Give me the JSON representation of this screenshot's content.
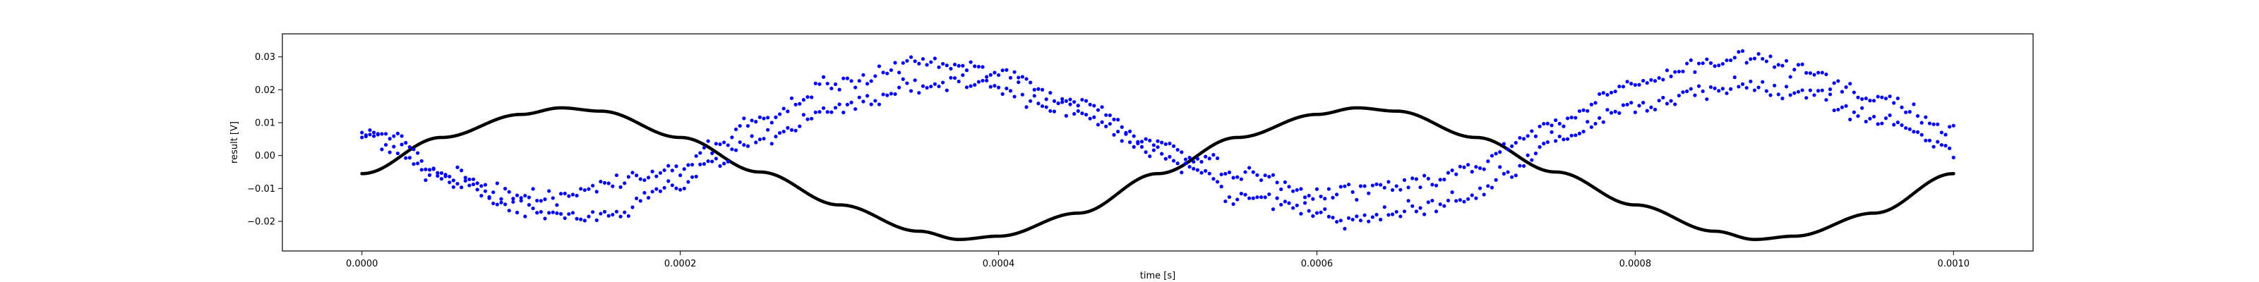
{
  "chart_data": {
    "type": "scatter",
    "title": "",
    "xlabel": "time [s]",
    "ylabel": "result [V]",
    "xlim": [
      -5e-05,
      0.00105
    ],
    "ylim": [
      -0.029,
      0.037
    ],
    "xticks": [
      0.0,
      0.0002,
      0.0004,
      0.0006,
      0.0008,
      0.001
    ],
    "xtick_labels": [
      "0.0000",
      "0.0002",
      "0.0004",
      "0.0006",
      "0.0008",
      "0.0010"
    ],
    "yticks": [
      -0.02,
      -0.01,
      0.0,
      0.01,
      0.02,
      0.03
    ],
    "ytick_labels": [
      "−0.02",
      "−0.01",
      "0.00",
      "0.01",
      "0.02",
      "0.03"
    ],
    "grid": false,
    "legend": "none",
    "series": [
      {
        "color": "#000000",
        "marker_size": 2.4,
        "x": [
          0.0,
          5e-05,
          0.0001,
          0.000125,
          0.00015,
          0.0002,
          0.00025,
          0.0003,
          0.00035,
          0.000375,
          0.0004,
          0.00045,
          0.0005,
          0.00055,
          0.0006,
          0.000625,
          0.00065,
          0.0007,
          0.00075,
          0.0008,
          0.00085,
          0.000875,
          0.0009,
          0.00095,
          0.001
        ],
        "y": [
          -0.0055,
          0.0055,
          0.0125,
          0.0145,
          0.0135,
          0.0055,
          -0.005,
          -0.015,
          -0.023,
          -0.0255,
          -0.0245,
          -0.0175,
          -0.0055,
          0.0055,
          0.0125,
          0.0145,
          0.0135,
          0.0055,
          -0.005,
          -0.015,
          -0.023,
          -0.0255,
          -0.0245,
          -0.0175,
          -0.0055
        ]
      },
      {
        "color": "#0000ff",
        "marker_size": 2.6,
        "x": [
          0.0,
          2e-05,
          5e-05,
          0.0001,
          0.00013,
          0.00015,
          0.0002,
          0.00022,
          0.00025,
          0.0003,
          0.00035,
          0.00038,
          0.0004,
          0.00045,
          0.0005,
          0.00052,
          0.00055,
          0.0006,
          0.00062,
          0.00065,
          0.0007,
          0.00072,
          0.00075,
          0.0008,
          0.00085,
          0.00087,
          0.0009,
          0.00095,
          0.001
        ],
        "y": [
          0.006,
          0.006,
          -0.006,
          -0.012,
          -0.012,
          -0.009,
          -0.004,
          0.003,
          0.011,
          0.022,
          0.028,
          0.027,
          0.025,
          0.016,
          0.004,
          0.0,
          -0.005,
          -0.011,
          -0.011,
          -0.009,
          -0.004,
          0.003,
          0.01,
          0.022,
          0.028,
          0.03,
          0.027,
          0.018,
          0.008
        ]
      },
      {
        "color": "#0000ff",
        "marker_size": 2.6,
        "x": [
          0.0,
          2e-05,
          5e-05,
          0.0001,
          0.00013,
          0.00015,
          0.0002,
          0.00022,
          0.00025,
          0.0003,
          0.00035,
          0.00038,
          0.0004,
          0.00045,
          0.0005,
          0.00052,
          0.00055,
          0.0006,
          0.00062,
          0.00065,
          0.0007,
          0.00072,
          0.00075,
          0.0008,
          0.00085,
          0.00087,
          0.0009,
          0.00095,
          0.001
        ],
        "y": [
          0.007,
          0.001,
          -0.007,
          -0.016,
          -0.019,
          -0.018,
          -0.009,
          -0.002,
          0.005,
          0.015,
          0.021,
          0.022,
          0.02,
          0.013,
          0.001,
          -0.004,
          -0.012,
          -0.017,
          -0.019,
          -0.017,
          -0.012,
          -0.005,
          0.005,
          0.015,
          0.02,
          0.021,
          0.02,
          0.012,
          0.002
        ]
      }
    ]
  }
}
